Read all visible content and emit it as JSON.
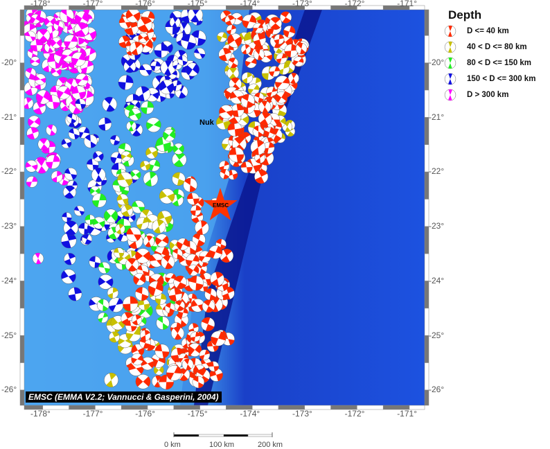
{
  "map": {
    "lon_ticks": [
      "-178°",
      "-177°",
      "-176°",
      "-175°",
      "-174°",
      "-173°",
      "-172°",
      "-171°"
    ],
    "lat_ticks": [
      "-20°",
      "-21°",
      "-22°",
      "-23°",
      "-24°",
      "-25°",
      "-26°"
    ],
    "lon_range": [
      -178.35,
      -170.7
    ],
    "lat_range": [
      -26.3,
      -19.0
    ],
    "place_label": "Nuk",
    "epicenter_label": "EMSC",
    "attribution": "EMSC (EMMA V2.2; Vannucci & Gasperini, 2004)"
  },
  "legend": {
    "title": "Depth",
    "items": [
      {
        "label": "D <= 40 km",
        "color": "#ff2a00"
      },
      {
        "label": "40 < D <= 80 km",
        "color": "#c8c000"
      },
      {
        "label": "80 < D <= 150 km",
        "color": "#22ee22"
      },
      {
        "label": "150 < D <= 300 km",
        "color": "#1010e0"
      },
      {
        "label": "D > 300 km",
        "color": "#ff00ff"
      }
    ]
  },
  "scale_bar": {
    "labels": [
      "0 km",
      "100 km",
      "200 km"
    ]
  }
}
